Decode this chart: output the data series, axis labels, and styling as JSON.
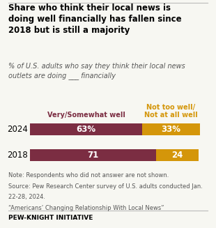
{
  "title": "Share who think their local news is\ndoing well financially has fallen since\n2018 but is still a majority",
  "subtitle": "% of U.S. adults who say they think their local news\noutlets are doing ___ financially",
  "years": [
    "2024",
    "2018"
  ],
  "well_values": [
    63,
    71
  ],
  "not_well_values": [
    33,
    24
  ],
  "well_labels": [
    "63%",
    "71"
  ],
  "not_well_labels": [
    "33%",
    "24"
  ],
  "well_color": "#7B2D42",
  "not_well_color": "#D4960A",
  "legend_well": "Very/Somewhat well",
  "legend_not_well": "Not too well/\nNot at all well",
  "note1": "Note: Respondents who did not answer are not shown.",
  "note2": "Source: Pew Research Center survey of U.S. adults conducted Jan.",
  "note3": "22-28, 2024.",
  "note4": "“Americans’ Changing Relationship With Local News”",
  "footer": "PEW-KNIGHT INITIATIVE",
  "bg_color": "#F7F7F2"
}
